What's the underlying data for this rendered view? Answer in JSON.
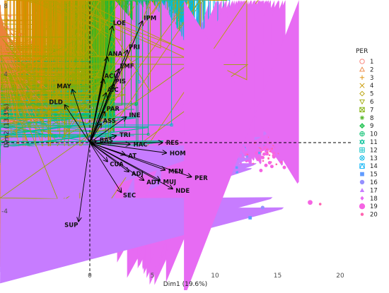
{
  "chart_data": {
    "type": "scatter",
    "subtype": "pca-biplot",
    "xlabel": "Dim1 (19.6%)",
    "ylabel": "Dim2 (13.3%)",
    "xlim": [
      -7,
      22
    ],
    "ylim": [
      -8.5,
      8.2
    ],
    "xticks": [
      0,
      5,
      10,
      15,
      20
    ],
    "yticks": [
      -4,
      0,
      4,
      8
    ],
    "grid": false,
    "reference_lines": {
      "x": 0,
      "y": 0,
      "style": "dashed"
    },
    "legend": {
      "title": "PER",
      "position": "right",
      "entries": [
        {
          "label": "1",
          "color": "#F8766D",
          "shape": "circle-open"
        },
        {
          "label": "2",
          "color": "#EC823C",
          "shape": "triangle-open"
        },
        {
          "label": "3",
          "color": "#DE8C00",
          "shape": "plus"
        },
        {
          "label": "4",
          "color": "#C99800",
          "shape": "cross"
        },
        {
          "label": "5",
          "color": "#B79F00",
          "shape": "diamond-open"
        },
        {
          "label": "6",
          "color": "#9CA700",
          "shape": "triangle-down-open"
        },
        {
          "label": "7",
          "color": "#7CAE00",
          "shape": "boxed-cross"
        },
        {
          "label": "8",
          "color": "#4FB420",
          "shape": "asterisk"
        },
        {
          "label": "9",
          "color": "#00BA38",
          "shape": "diamond-plus"
        },
        {
          "label": "10",
          "color": "#00BE6C",
          "shape": "circle-plus"
        },
        {
          "label": "11",
          "color": "#00BF96",
          "shape": "hexagram"
        },
        {
          "label": "12",
          "color": "#00BFC4",
          "shape": "square-plus"
        },
        {
          "label": "13",
          "color": "#00B8E7",
          "shape": "circle-cross"
        },
        {
          "label": "14",
          "color": "#00B0F6",
          "shape": "square-triangle"
        },
        {
          "label": "15",
          "color": "#619CFF",
          "shape": "square"
        },
        {
          "label": "16",
          "color": "#9590FF",
          "shape": "circle"
        },
        {
          "label": "17",
          "color": "#C77CFF",
          "shape": "triangle"
        },
        {
          "label": "18",
          "color": "#E76BF3",
          "shape": "diamond"
        },
        {
          "label": "19",
          "color": "#F564E3",
          "shape": "circle-large"
        },
        {
          "label": "20",
          "color": "#FF64B0",
          "shape": "circle-small"
        }
      ]
    },
    "variables": [
      {
        "name": "IPM",
        "x": 4.2,
        "y": 7.1
      },
      {
        "name": "LOE",
        "x": 1.8,
        "y": 6.8
      },
      {
        "name": "PRI",
        "x": 3.0,
        "y": 5.4
      },
      {
        "name": "ANA",
        "x": 1.4,
        "y": 5.0
      },
      {
        "name": "EMF",
        "x": 2.3,
        "y": 4.3
      },
      {
        "name": "ACU",
        "x": 1.1,
        "y": 3.7
      },
      {
        "name": "PIS",
        "x": 1.9,
        "y": 3.4
      },
      {
        "name": "AIC",
        "x": 1.3,
        "y": 2.9
      },
      {
        "name": "MAY",
        "x": -1.4,
        "y": 3.1
      },
      {
        "name": "DLD",
        "x": -2.0,
        "y": 2.2
      },
      {
        "name": "PAR",
        "x": 1.2,
        "y": 1.8
      },
      {
        "name": "INE",
        "x": 2.9,
        "y": 1.5
      },
      {
        "name": "ASS",
        "x": 0.9,
        "y": 1.1
      },
      {
        "name": "TRI",
        "x": 2.1,
        "y": 0.4
      },
      {
        "name": "BAS",
        "x": 0.5,
        "y": 0.1
      },
      {
        "name": "HAC",
        "x": 3.2,
        "y": -0.1
      },
      {
        "name": "RES",
        "x": 5.8,
        "y": 0.0
      },
      {
        "name": "HOM",
        "x": 6.1,
        "y": -0.6
      },
      {
        "name": "AT",
        "x": 2.8,
        "y": -0.7
      },
      {
        "name": "CUA",
        "x": 1.4,
        "y": -1.1
      },
      {
        "name": "ADJ",
        "x": 3.1,
        "y": -1.7
      },
      {
        "name": "MEN",
        "x": 6.0,
        "y": -1.6
      },
      {
        "name": "PER",
        "x": 8.1,
        "y": -2.0
      },
      {
        "name": "ADT",
        "x": 4.3,
        "y": -2.2
      },
      {
        "name": "MUJ",
        "x": 5.6,
        "y": -2.2
      },
      {
        "name": "NDE",
        "x": 6.6,
        "y": -2.7
      },
      {
        "name": "SEC",
        "x": 2.5,
        "y": -2.9
      },
      {
        "name": "SUP",
        "x": -0.9,
        "y": -4.6
      }
    ],
    "individuals_note": "dense cloud of individuals colored by PER group; shown as a synthetic reproduction"
  }
}
